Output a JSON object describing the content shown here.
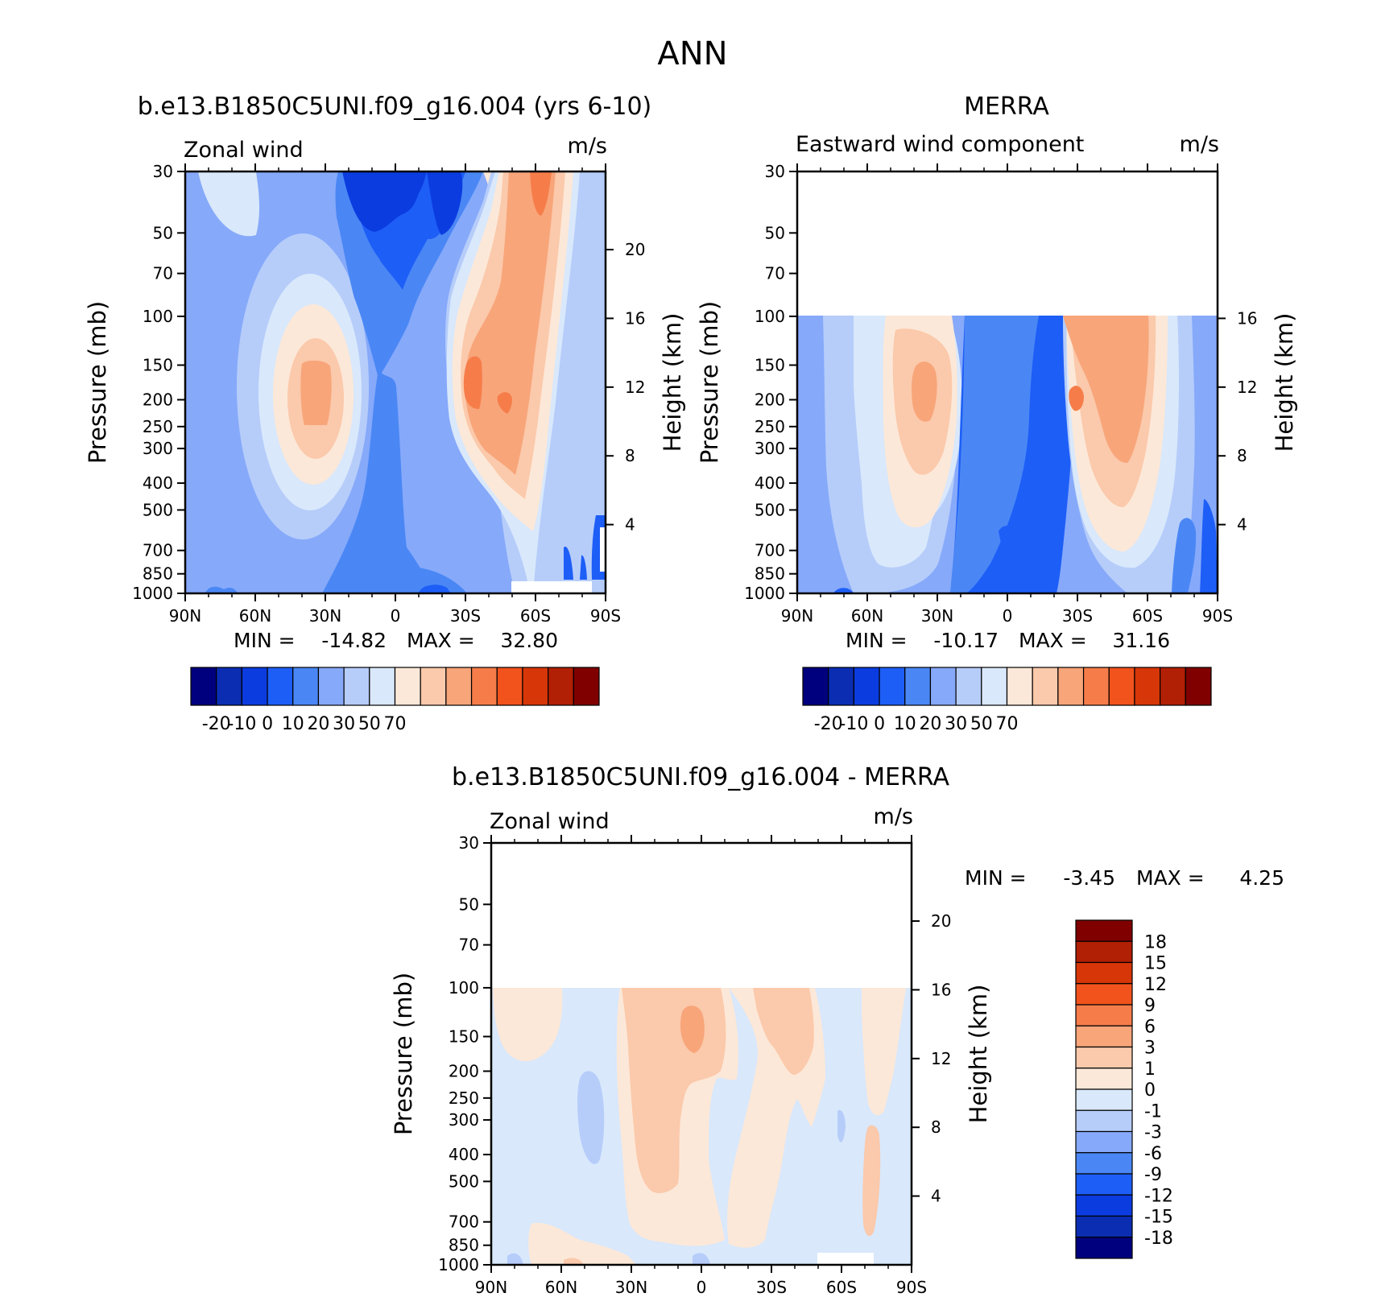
{
  "figure_title": "ANN",
  "chart_data": [
    {
      "type": "contour",
      "title": "b.e13.B1850C5UNI.f09_g16.004 (yrs 6-10)",
      "variable": "Zonal wind",
      "units": "m/s",
      "ylabel": "Pressure (mb)",
      "ylabel2": "Height (km)",
      "x_ticks": [
        "90N",
        "60N",
        "30N",
        "0",
        "30S",
        "60S",
        "90S"
      ],
      "y_ticks": [
        "30",
        "50",
        "70",
        "100",
        "150",
        "200",
        "250",
        "300",
        "400",
        "500",
        "700",
        "850",
        "1000"
      ],
      "y2_ticks": [
        "20",
        "16",
        "12",
        "8",
        "4"
      ],
      "stats": {
        "min_label": "MIN =",
        "min": "-14.82",
        "max_label": "MAX =",
        "max": "32.80"
      },
      "colorbar_labels": [
        "-20",
        "-10",
        "0",
        "10",
        "20",
        "30",
        "50",
        "70"
      ],
      "data_top_mb": 30,
      "features": [
        {
          "lat": 37,
          "p": 200,
          "value": 30,
          "kind": "westerly jet"
        },
        {
          "lat": -45,
          "p": 200,
          "value": 32.8,
          "kind": "westerly jet"
        },
        {
          "lat": 0,
          "p": 30,
          "value": -14.82,
          "kind": "stratospheric easterlies"
        },
        {
          "lat": -70,
          "p": 30,
          "value": 30,
          "kind": "polar night jet"
        }
      ]
    },
    {
      "type": "contour",
      "title": "MERRA",
      "variable": "Eastward wind component",
      "units": "m/s",
      "ylabel": "Pressure (mb)",
      "ylabel2": "Height (km)",
      "x_ticks": [
        "90N",
        "60N",
        "30N",
        "0",
        "30S",
        "60S",
        "90S"
      ],
      "y_ticks": [
        "30",
        "50",
        "70",
        "100",
        "150",
        "200",
        "250",
        "300",
        "400",
        "500",
        "700",
        "850",
        "1000"
      ],
      "y2_ticks": [
        "16",
        "12",
        "8",
        "4"
      ],
      "stats": {
        "min_label": "MIN =",
        "min": "-10.17",
        "max_label": "MAX =",
        "max": "31.16"
      },
      "colorbar_labels": [
        "-20",
        "-10",
        "0",
        "10",
        "20",
        "30",
        "50",
        "70"
      ],
      "data_top_mb": 100,
      "features": [
        {
          "lat": 36,
          "p": 200,
          "value": 28,
          "kind": "westerly jet"
        },
        {
          "lat": -43,
          "p": 200,
          "value": 31.16,
          "kind": "westerly jet"
        },
        {
          "lat": 0,
          "p": 700,
          "value": -10.17,
          "kind": "easterlies"
        }
      ]
    },
    {
      "type": "contour",
      "title": "b.e13.B1850C5UNI.f09_g16.004 - MERRA",
      "variable": "Zonal wind",
      "units": "m/s",
      "ylabel": "Pressure (mb)",
      "ylabel2": "Height (km)",
      "x_ticks": [
        "90N",
        "60N",
        "30N",
        "0",
        "30S",
        "60S",
        "90S"
      ],
      "y_ticks": [
        "30",
        "50",
        "70",
        "100",
        "150",
        "200",
        "250",
        "300",
        "400",
        "500",
        "700",
        "850",
        "1000"
      ],
      "y2_ticks": [
        "20",
        "16",
        "12",
        "8",
        "4"
      ],
      "stats": {
        "min_label": "MIN =",
        "min": "-3.45",
        "max_label": "MAX =",
        "max": "4.25"
      },
      "colorbar_labels": [
        "18",
        "15",
        "12",
        "9",
        "6",
        "3",
        "1",
        "0",
        "-1",
        "-3",
        "-6",
        "-9",
        "-12",
        "-15",
        "-18"
      ],
      "data_top_mb": 100
    }
  ],
  "palette": [
    "#00007f",
    "#0a2db2",
    "#0b3ce0",
    "#1d5ef7",
    "#4a87f5",
    "#86a9fa",
    "#b6cdfa",
    "#d9e8fb",
    "#fce8d8",
    "#fbc9ab",
    "#f8a57a",
    "#f67d4a",
    "#f2531c",
    "#d73608",
    "#b11f04",
    "#800000"
  ],
  "diff_palette": [
    "#800000",
    "#b11f04",
    "#d73608",
    "#f2531c",
    "#f67d4a",
    "#f8a57a",
    "#fbc9ab",
    "#fce8d8",
    "#d9e8fb",
    "#b6cdfa",
    "#86a9fa",
    "#4a87f5",
    "#1d5ef7",
    "#0b3ce0",
    "#0a2db2",
    "#00007f"
  ]
}
